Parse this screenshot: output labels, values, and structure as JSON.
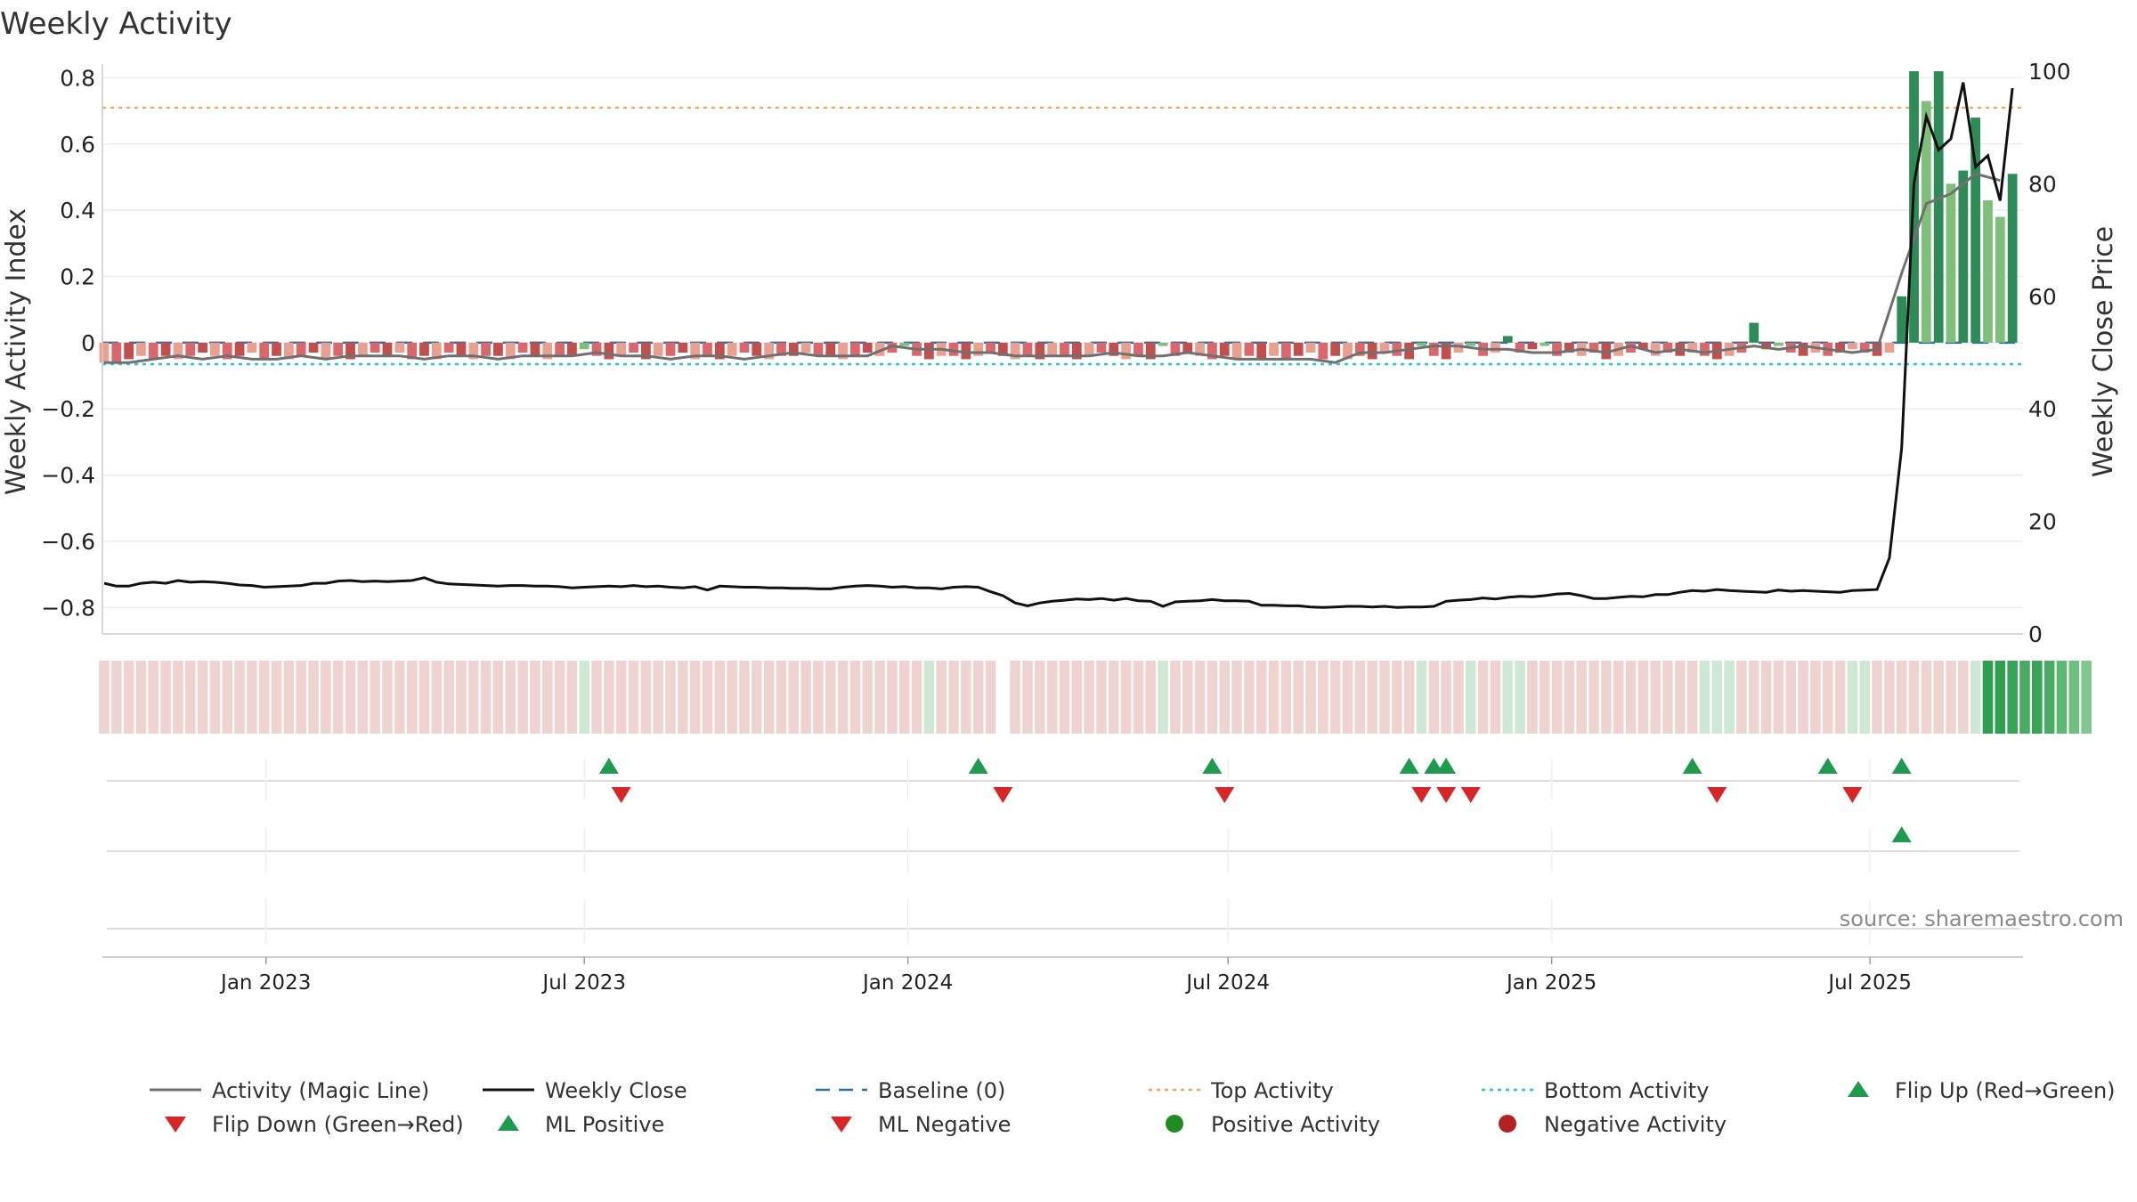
{
  "chart_data": {
    "type": "bar",
    "title": "Weekly Activity",
    "ylabel_left": "Weekly Activity Index",
    "ylabel_right": "Weekly Close Price",
    "left_axis": {
      "ylim": [
        -0.88,
        0.82
      ],
      "ticks": [
        0.8,
        0.6,
        0.4,
        0.2,
        0,
        -0.2,
        -0.4,
        -0.6,
        -0.8
      ],
      "tick_labels": [
        "0.8",
        "0.6",
        "0.4",
        "0.2",
        "0",
        "−0.2",
        "−0.4",
        "−0.6",
        "−0.8"
      ]
    },
    "right_axis": {
      "ylim": [
        0,
        100
      ],
      "ticks": [
        100,
        80,
        60,
        40,
        20,
        0
      ],
      "tick_labels": [
        "100",
        "80",
        "60",
        "40",
        "20",
        "0"
      ]
    },
    "x_axis": {
      "range": [
        "2022-09-30",
        "2025-09-26"
      ],
      "ticks": [
        {
          "date": "2023-01-01",
          "label": "Jan 2023"
        },
        {
          "date": "2023-07-01",
          "label": "Jul 2023"
        },
        {
          "date": "2024-01-01",
          "label": "Jan 2024"
        },
        {
          "date": "2024-07-01",
          "label": "Jul 2024"
        },
        {
          "date": "2025-01-01",
          "label": "Jan 2025"
        },
        {
          "date": "2025-07-01",
          "label": "Jul 2025"
        }
      ]
    },
    "grid": true,
    "reference_lines": {
      "baseline": 0,
      "top_activity": 0.71,
      "bottom_activity": -0.065
    },
    "activity": {
      "start_date": "2022-10-01",
      "interval_days": 7,
      "values": [
        -0.06,
        -0.06,
        -0.05,
        -0.04,
        -0.05,
        -0.04,
        -0.05,
        -0.04,
        -0.03,
        -0.04,
        -0.05,
        -0.04,
        -0.03,
        -0.05,
        -0.04,
        -0.05,
        -0.04,
        -0.03,
        -0.05,
        -0.04,
        -0.05,
        -0.04,
        -0.03,
        -0.04,
        -0.03,
        -0.05,
        -0.04,
        -0.05,
        -0.03,
        -0.04,
        -0.05,
        -0.04,
        -0.04,
        -0.05,
        -0.03,
        -0.04,
        -0.05,
        -0.04,
        -0.04,
        -0.02,
        -0.04,
        -0.05,
        -0.04,
        -0.03,
        -0.05,
        -0.04,
        -0.04,
        -0.03,
        -0.05,
        -0.04,
        -0.05,
        -0.04,
        -0.03,
        -0.04,
        -0.05,
        -0.04,
        -0.04,
        -0.03,
        -0.04,
        -0.04,
        -0.05,
        -0.04,
        -0.03,
        -0.04,
        -0.03,
        -0.01,
        -0.04,
        -0.05,
        -0.04,
        -0.04,
        -0.05,
        -0.04,
        -0.03,
        -0.04,
        -0.05,
        -0.04,
        -0.05,
        -0.04,
        -0.04,
        -0.05,
        -0.04,
        -0.03,
        -0.04,
        -0.05,
        -0.04,
        -0.05,
        -0.01,
        -0.04,
        -0.03,
        -0.04,
        -0.05,
        -0.04,
        -0.05,
        -0.04,
        -0.05,
        -0.04,
        -0.05,
        -0.04,
        -0.03,
        -0.05,
        -0.04,
        -0.05,
        -0.04,
        -0.05,
        -0.03,
        -0.04,
        -0.05,
        -0.01,
        -0.04,
        -0.05,
        -0.03,
        -0.01,
        -0.04,
        -0.03,
        0.02,
        -0.03,
        -0.02,
        -0.01,
        -0.04,
        -0.03,
        -0.04,
        -0.03,
        -0.05,
        -0.04,
        -0.03,
        -0.02,
        -0.04,
        -0.03,
        -0.04,
        -0.03,
        -0.04,
        -0.05,
        -0.04,
        -0.03,
        0.06,
        -0.02,
        -0.01,
        -0.03,
        -0.04,
        -0.03,
        -0.04,
        -0.03,
        -0.02,
        -0.03,
        -0.04,
        -0.03,
        0.14,
        0.82,
        0.73,
        0.82,
        0.48,
        0.52,
        0.68,
        0.43,
        0.38,
        0.51
      ],
      "colors": [
        "#e8a090",
        "#d9676c",
        "#c0504d",
        "#e8a090",
        "#d9676c",
        "#c0504d",
        "#e8a090",
        "#d9676c",
        "#c0504d",
        "#e8a090",
        "#d9676c",
        "#c0504d",
        "#e8a090",
        "#d9676c",
        "#c0504d",
        "#e8a090",
        "#d9676c",
        "#c0504d",
        "#e8a090",
        "#d9676c",
        "#c0504d",
        "#e8a090",
        "#d9676c",
        "#c0504d",
        "#e8a090",
        "#d9676c",
        "#c0504d",
        "#e8a090",
        "#d9676c",
        "#c0504d",
        "#e8a090",
        "#d9676c",
        "#c0504d",
        "#e8a090",
        "#d9676c",
        "#c0504d",
        "#e8a090",
        "#d9676c",
        "#c0504d",
        "#7fbf7b",
        "#d9676c",
        "#c0504d",
        "#e8a090",
        "#d9676c",
        "#c0504d",
        "#e8a090",
        "#d9676c",
        "#c0504d",
        "#e8a090",
        "#d9676c",
        "#c0504d",
        "#e8a090",
        "#d9676c",
        "#c0504d",
        "#e8a090",
        "#d9676c",
        "#c0504d",
        "#e8a090",
        "#d9676c",
        "#c0504d",
        "#e8a090",
        "#d9676c",
        "#c0504d",
        "#e8a090",
        "#d9676c",
        "#7fbf7b",
        "#d9676c",
        "#c0504d",
        "#e8a090",
        "#d9676c",
        "#c0504d",
        "#e8a090",
        "#d9676c",
        "#c0504d",
        "#e8a090",
        "#d9676c",
        "#c0504d",
        "#e8a090",
        "#d9676c",
        "#c0504d",
        "#e8a090",
        "#d9676c",
        "#c0504d",
        "#e8a090",
        "#d9676c",
        "#c0504d",
        "#7fbf7b",
        "#d9676c",
        "#c0504d",
        "#e8a090",
        "#d9676c",
        "#c0504d",
        "#e8a090",
        "#d9676c",
        "#c0504d",
        "#e8a090",
        "#d9676c",
        "#c0504d",
        "#e8a090",
        "#d9676c",
        "#c0504d",
        "#e8a090",
        "#d9676c",
        "#c0504d",
        "#e8a090",
        "#d9676c",
        "#c0504d",
        "#7fbf7b",
        "#d9676c",
        "#c0504d",
        "#e8a090",
        "#7fbf7b",
        "#d9676c",
        "#e8a090",
        "#2e8b57",
        "#d9676c",
        "#c0504d",
        "#7fbf7b",
        "#d9676c",
        "#c0504d",
        "#e8a090",
        "#d9676c",
        "#c0504d",
        "#e8a090",
        "#d9676c",
        "#c0504d",
        "#e8a090",
        "#d9676c",
        "#c0504d",
        "#e8a090",
        "#d9676c",
        "#c0504d",
        "#e8a090",
        "#d9676c",
        "#2e8b57",
        "#c0504d",
        "#7fbf7b",
        "#d9676c",
        "#c0504d",
        "#e8a090",
        "#d9676c",
        "#c0504d",
        "#e8a090",
        "#d9676c",
        "#c0504d",
        "#e8a090",
        "#2e8b57",
        "#2e8b57",
        "#7fbf7b",
        "#2e8b57",
        "#7fbf7b",
        "#2e8b57",
        "#2e8b57",
        "#7fbf7b",
        "#7fbf7b",
        "#2e8b57"
      ]
    },
    "magic_line": {
      "start_date": "2022-10-01",
      "interval_days": 14,
      "values": [
        -0.06,
        -0.06,
        -0.05,
        -0.04,
        -0.05,
        -0.04,
        -0.05,
        -0.05,
        -0.04,
        -0.05,
        -0.04,
        -0.04,
        -0.04,
        -0.05,
        -0.04,
        -0.04,
        -0.05,
        -0.04,
        -0.04,
        -0.04,
        -0.03,
        -0.04,
        -0.04,
        -0.05,
        -0.04,
        -0.04,
        -0.05,
        -0.04,
        -0.03,
        -0.04,
        -0.04,
        -0.04,
        -0.01,
        -0.02,
        -0.02,
        -0.03,
        -0.03,
        -0.04,
        -0.04,
        -0.04,
        -0.04,
        -0.03,
        -0.04,
        -0.04,
        -0.03,
        -0.04,
        -0.05,
        -0.05,
        -0.05,
        -0.05,
        -0.06,
        -0.03,
        -0.03,
        -0.02,
        -0.01,
        -0.01,
        -0.02,
        -0.02,
        -0.03,
        -0.03,
        -0.02,
        -0.03,
        -0.01,
        -0.03,
        -0.02,
        -0.03,
        -0.02,
        -0.01,
        -0.02,
        -0.01,
        -0.02,
        -0.03,
        -0.02,
        0.21,
        0.42,
        0.45,
        0.51,
        0.49
      ]
    },
    "weekly_close": {
      "start_date": "2022-10-01",
      "interval_days": 7,
      "values": [
        9,
        8.5,
        8.5,
        9,
        9.2,
        9,
        9.5,
        9.2,
        9.3,
        9.2,
        9,
        8.7,
        8.6,
        8.3,
        8.4,
        8.5,
        8.6,
        9,
        9,
        9.4,
        9.5,
        9.3,
        9.4,
        9.3,
        9.4,
        9.5,
        10,
        9.2,
        8.9,
        8.8,
        8.7,
        8.6,
        8.5,
        8.6,
        8.6,
        8.5,
        8.5,
        8.4,
        8.2,
        8.3,
        8.4,
        8.5,
        8.4,
        8.6,
        8.4,
        8.5,
        8.3,
        8.2,
        8.4,
        7.8,
        8.5,
        8.4,
        8.3,
        8.3,
        8.2,
        8.2,
        8.1,
        8.1,
        8,
        8,
        8.3,
        8.5,
        8.6,
        8.5,
        8.3,
        8.4,
        8.2,
        8.2,
        8,
        8.3,
        8.4,
        8.3,
        7.5,
        6.8,
        5.5,
        5,
        5.5,
        5.8,
        6,
        6.2,
        6.1,
        6.3,
        6,
        6.3,
        5.9,
        5.8,
        4.9,
        5.7,
        5.8,
        5.9,
        6.1,
        5.9,
        5.9,
        5.8,
        5.1,
        5.1,
        5,
        5,
        4.8,
        4.7,
        4.8,
        4.9,
        4.9,
        4.8,
        4.9,
        4.7,
        4.8,
        4.8,
        4.9,
        5.8,
        6,
        6.1,
        6.4,
        6.2,
        6.5,
        6.7,
        6.6,
        6.8,
        7.1,
        7.2,
        6.8,
        6.3,
        6.3,
        6.5,
        6.7,
        6.6,
        7,
        7,
        7.4,
        7.7,
        7.6,
        7.9,
        7.7,
        7.6,
        7.5,
        7.4,
        7.8,
        7.6,
        7.7,
        7.6,
        7.5,
        7.4,
        7.7,
        7.8,
        7.9,
        13.5,
        33,
        80,
        92,
        86,
        88,
        98,
        83,
        85,
        77,
        97
      ]
    },
    "status_strip": {
      "start_date": "2022-10-01",
      "interval_days": 7,
      "gaps": [
        "2024-02-24"
      ],
      "colors": [
        "#efd3d0",
        "#efd3d0",
        "#efd3d0",
        "#efd3d0",
        "#efd3d0",
        "#efd3d0",
        "#efd3d0",
        "#efd3d0",
        "#efd3d0",
        "#efd3d0",
        "#efd3d0",
        "#efd3d0",
        "#efd3d0",
        "#efd3d0",
        "#efd3d0",
        "#efd3d0",
        "#efd3d0",
        "#efd3d0",
        "#efd3d0",
        "#efd3d0",
        "#efd3d0",
        "#efd3d0",
        "#efd3d0",
        "#efd3d0",
        "#efd3d0",
        "#efd3d0",
        "#efd3d0",
        "#efd3d0",
        "#efd3d0",
        "#efd3d0",
        "#efd3d0",
        "#efd3d0",
        "#efd3d0",
        "#efd3d0",
        "#efd3d0",
        "#efd3d0",
        "#efd3d0",
        "#efd3d0",
        "#efd3d0",
        "#cfe8d5",
        "#efd3d0",
        "#efd3d0",
        "#efd3d0",
        "#efd3d0",
        "#efd3d0",
        "#efd3d0",
        "#efd3d0",
        "#efd3d0",
        "#efd3d0",
        "#efd3d0",
        "#efd3d0",
        "#efd3d0",
        "#efd3d0",
        "#efd3d0",
        "#efd3d0",
        "#efd3d0",
        "#efd3d0",
        "#efd3d0",
        "#efd3d0",
        "#efd3d0",
        "#efd3d0",
        "#efd3d0",
        "#efd3d0",
        "#efd3d0",
        "#efd3d0",
        "#efd3d0",
        "#efd3d0",
        "#cfe8d5",
        "#efd3d0",
        "#efd3d0",
        "#efd3d0",
        "#efd3d0",
        "#efd3d0",
        "#efd3d0",
        "#efd3d0",
        "#efd3d0",
        "#efd3d0",
        "#efd3d0",
        "#efd3d0",
        "#efd3d0",
        "#efd3d0",
        "#efd3d0",
        "#efd3d0",
        "#efd3d0",
        "#efd3d0",
        "#efd3d0",
        "#cfe8d5",
        "#efd3d0",
        "#efd3d0",
        "#efd3d0",
        "#efd3d0",
        "#efd3d0",
        "#efd3d0",
        "#efd3d0",
        "#efd3d0",
        "#efd3d0",
        "#efd3d0",
        "#efd3d0",
        "#efd3d0",
        "#efd3d0",
        "#efd3d0",
        "#efd3d0",
        "#efd3d0",
        "#efd3d0",
        "#efd3d0",
        "#efd3d0",
        "#efd3d0",
        "#cfe8d5",
        "#efd3d0",
        "#efd3d0",
        "#efd3d0",
        "#cfe8d5",
        "#efd3d0",
        "#efd3d0",
        "#cfe8d5",
        "#cfe8d5",
        "#efd3d0",
        "#efd3d0",
        "#efd3d0",
        "#efd3d0",
        "#efd3d0",
        "#efd3d0",
        "#efd3d0",
        "#efd3d0",
        "#efd3d0",
        "#efd3d0",
        "#efd3d0",
        "#efd3d0",
        "#efd3d0",
        "#efd3d0",
        "#cfe8d5",
        "#cfe8d5",
        "#cfe8d5",
        "#efd3d0",
        "#efd3d0",
        "#efd3d0",
        "#efd3d0",
        "#efd3d0",
        "#efd3d0",
        "#efd3d0",
        "#efd3d0",
        "#efd3d0",
        "#cfe8d5",
        "#cfe8d5",
        "#efd3d0",
        "#efd3d0",
        "#efd3d0",
        "#efd3d0",
        "#efd3d0",
        "#efd3d0",
        "#efd3d0",
        "#efd3d0",
        "#cfe8d5",
        "#2e9e4f",
        "#2e9e4f",
        "#3aa35a",
        "#4aaa63",
        "#3aa35a",
        "#4aaa63",
        "#5db672",
        "#6ebe80",
        "#7fc68f"
      ]
    },
    "flip_up": [
      "2023-07-15",
      "2024-02-10",
      "2024-06-22",
      "2024-10-12",
      "2024-10-26",
      "2024-11-02",
      "2025-03-22",
      "2025-06-07",
      "2025-07-19"
    ],
    "flip_down": [
      "2023-07-22",
      "2024-02-24",
      "2024-06-29",
      "2024-10-19",
      "2024-11-02",
      "2024-11-16",
      "2025-04-05",
      "2025-06-21"
    ],
    "ml_positive": [
      "2025-07-19"
    ],
    "ml_negative": [],
    "source_note": "source: sharemaestro.com",
    "legend": [
      {
        "label": "Activity (Magic Line)",
        "kind": "line",
        "color": "#707070"
      },
      {
        "label": "Weekly Close",
        "kind": "line",
        "color": "#111111"
      },
      {
        "label": "Baseline (0)",
        "kind": "dash",
        "color": "#2f6fa8"
      },
      {
        "label": "Top Activity",
        "kind": "dot",
        "color": "#f4a261"
      },
      {
        "label": "Bottom Activity",
        "kind": "dot",
        "color": "#26c6cf"
      },
      {
        "label": "Flip Up (Red→Green)",
        "kind": "tri-up",
        "color": "#1f9a4f"
      },
      {
        "label": "Flip Down (Green→Red)",
        "kind": "tri-down",
        "color": "#d62728"
      },
      {
        "label": "ML Positive",
        "kind": "tri-up",
        "color": "#1f9a4f"
      },
      {
        "label": "ML Negative",
        "kind": "tri-down",
        "color": "#d62728"
      },
      {
        "label": "Positive Activity",
        "kind": "circle",
        "color": "#228b22"
      },
      {
        "label": "Negative Activity",
        "kind": "circle",
        "color": "#b22222"
      }
    ],
    "legend_placement": "bottom"
  }
}
